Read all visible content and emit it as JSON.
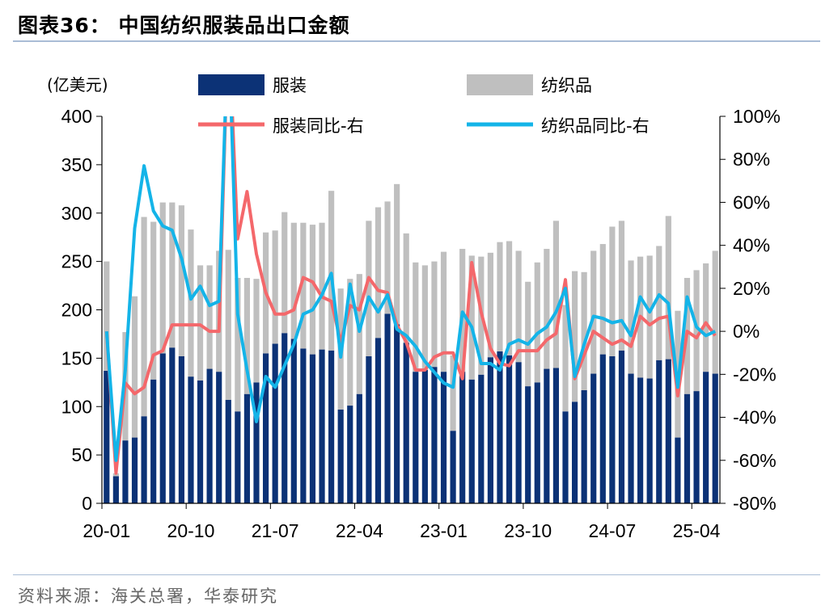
{
  "title": "图表36：  中国纺织服装品出口金额",
  "source": "资料来源：海关总署，华泰研究",
  "colors": {
    "apparel": "#0c3276",
    "textile": "#bfbfbf",
    "apparel_yoy": "#f4686b",
    "textile_yoy": "#14b4e8"
  },
  "chart_data": {
    "type": "bar",
    "unit_left": "(亿美元)",
    "y_left": {
      "min": 0,
      "max": 400,
      "ticks": [
        "0",
        "50",
        "100",
        "150",
        "200",
        "250",
        "300",
        "350",
        "400"
      ]
    },
    "y_right": {
      "min": -80,
      "max": 100,
      "ticks": [
        "-80%",
        "-60%",
        "-40%",
        "-20%",
        "0%",
        "20%",
        "40%",
        "60%",
        "80%",
        "100%"
      ]
    },
    "x_tick_labels": [
      "20-01",
      "20-10",
      "21-07",
      "22-04",
      "23-01",
      "23-10",
      "24-07",
      "25-04"
    ],
    "x_tick_every": 9,
    "categories": [
      "20-01",
      "20-02",
      "20-03",
      "20-04",
      "20-05",
      "20-06",
      "20-07",
      "20-08",
      "20-09",
      "20-10",
      "20-11",
      "20-12",
      "21-01",
      "21-02",
      "21-03",
      "21-04",
      "21-05",
      "21-06",
      "21-07",
      "21-08",
      "21-09",
      "21-10",
      "21-11",
      "21-12",
      "22-01",
      "22-02",
      "22-03",
      "22-04",
      "22-05",
      "22-06",
      "22-07",
      "22-08",
      "22-09",
      "22-10",
      "22-11",
      "22-12",
      "23-01",
      "23-02",
      "23-03",
      "23-04",
      "23-05",
      "23-06",
      "23-07",
      "23-08",
      "23-09",
      "23-10",
      "23-11",
      "23-12",
      "24-01",
      "24-02",
      "24-03",
      "24-04",
      "24-05",
      "24-06",
      "24-07",
      "24-08",
      "24-09",
      "24-10",
      "24-11",
      "24-12",
      "25-01",
      "25-02",
      "25-03",
      "25-04",
      "25-05",
      "25-06"
    ],
    "stacked": true,
    "legend": [
      "服装",
      "纺织品",
      "服装同比-右",
      "纺织品同比-右"
    ],
    "series": [
      {
        "name": "服装",
        "axis": "left",
        "kind": "bar",
        "values": [
          137,
          28,
          65,
          68,
          90,
          128,
          155,
          161,
          152,
          131,
          127,
          139,
          136,
          107,
          95,
          113,
          125,
          155,
          165,
          176,
          170,
          160,
          154,
          159,
          158,
          97,
          101,
          113,
          152,
          171,
          196,
          185,
          166,
          136,
          138,
          141,
          136,
          75,
          136,
          128,
          133,
          151,
          157,
          153,
          146,
          121,
          125,
          139,
          140,
          95,
          105,
          117,
          134,
          154,
          152,
          158,
          134,
          130,
          129,
          148,
          149,
          68,
          113,
          116,
          136,
          134
        ]
      },
      {
        "name": "纺织品",
        "axis": "left",
        "kind": "bar",
        "values": [
          113,
          3,
          112,
          146,
          206,
          163,
          156,
          150,
          156,
          152,
          119,
          107,
          125,
          155,
          138,
          120,
          107,
          125,
          117,
          125,
          120,
          130,
          134,
          131,
          165,
          125,
          131,
          124,
          140,
          135,
          116,
          145,
          113,
          113,
          108,
          109,
          124,
          78,
          127,
          128,
          122,
          108,
          113,
          118,
          115,
          108,
          124,
          124,
          152,
          110,
          135,
          122,
          127,
          114,
          134,
          134,
          117,
          125,
          127,
          118,
          148,
          131,
          120,
          125,
          112,
          127
        ]
      },
      {
        "name": "服装同比-右",
        "axis": "right",
        "kind": "line",
        "values": [
          0,
          -66,
          -24,
          -29,
          -26,
          -11,
          -9,
          3,
          3,
          3,
          3,
          0,
          0,
          145,
          43,
          65,
          36,
          18,
          8,
          8,
          10,
          25,
          23,
          16,
          14,
          -5,
          12,
          10,
          25,
          19,
          18,
          3,
          -5,
          -18,
          -18,
          -12,
          -10,
          -10,
          -22,
          32,
          9,
          -8,
          -15,
          -16,
          -9,
          -9,
          -9,
          -4,
          -1,
          24,
          -22,
          -11,
          0,
          -3,
          -6,
          -4,
          -7,
          7,
          3,
          6,
          7,
          -30,
          0,
          -3,
          4,
          -2
        ]
      },
      {
        "name": "纺织品同比-右",
        "axis": "right",
        "kind": "line",
        "values": [
          0,
          -60,
          -18,
          48,
          77,
          56,
          49,
          47,
          34,
          15,
          21,
          12,
          14,
          145,
          8,
          -18,
          -42,
          -21,
          -26,
          -16,
          -6,
          8,
          10,
          17,
          27,
          -12,
          22,
          0,
          16,
          9,
          17,
          1,
          -2,
          -7,
          -14,
          -19,
          -24,
          -26,
          9,
          2,
          -15,
          -15,
          -18,
          -6,
          -4,
          -6,
          -1,
          2,
          9,
          20,
          -21,
          -6,
          7,
          6,
          4,
          5,
          -2,
          16,
          9,
          17,
          13,
          -26,
          16,
          2,
          -2,
          0
        ]
      }
    ]
  }
}
